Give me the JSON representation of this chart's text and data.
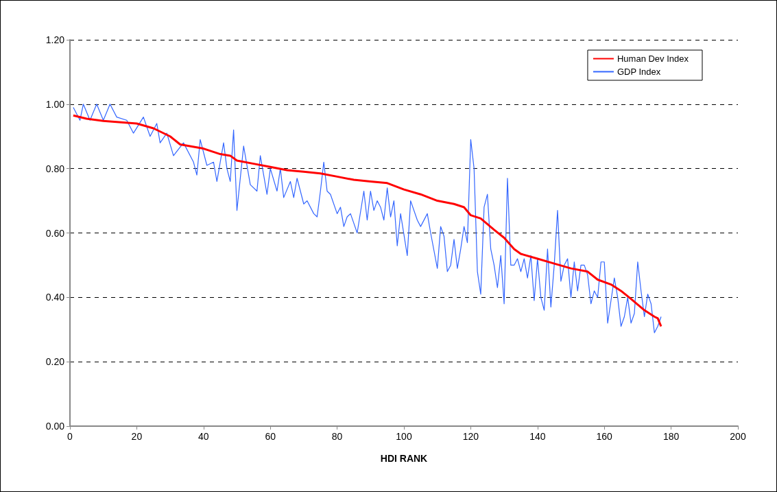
{
  "chart_data": {
    "type": "line",
    "xlabel": "HDI RANK",
    "xlim": [
      0,
      200
    ],
    "xticks": [
      0,
      20,
      40,
      60,
      80,
      100,
      120,
      140,
      160,
      180,
      200
    ],
    "ylim": [
      0,
      1.2
    ],
    "yticks": [
      {
        "value": 0,
        "label": "0.00"
      },
      {
        "value": 0.2,
        "label": "0.20"
      },
      {
        "value": 0.4,
        "label": "0.40"
      },
      {
        "value": 0.6,
        "label": "0.60"
      },
      {
        "value": 0.8,
        "label": "0.80"
      },
      {
        "value": 1,
        "label": "1.00"
      },
      {
        "value": 1.2,
        "label": "1.20"
      }
    ],
    "grid": "y",
    "legend": "top right",
    "series": [
      {
        "name": "Human Dev Index",
        "color": "#ff0000",
        "x": [
          1,
          5,
          10,
          20,
          25,
          30,
          33,
          40,
          45,
          48,
          50,
          55,
          60,
          65,
          70,
          75,
          80,
          85,
          90,
          95,
          100,
          105,
          110,
          115,
          118,
          120,
          123,
          127,
          130,
          133,
          135,
          140,
          145,
          150,
          155,
          158,
          162,
          165,
          168,
          172,
          175,
          176,
          177
        ],
        "values": [
          0.965,
          0.955,
          0.948,
          0.94,
          0.925,
          0.9,
          0.875,
          0.862,
          0.845,
          0.84,
          0.825,
          0.815,
          0.805,
          0.795,
          0.79,
          0.785,
          0.775,
          0.765,
          0.76,
          0.755,
          0.735,
          0.72,
          0.7,
          0.69,
          0.68,
          0.655,
          0.645,
          0.61,
          0.585,
          0.55,
          0.535,
          0.52,
          0.505,
          0.49,
          0.48,
          0.455,
          0.44,
          0.42,
          0.395,
          0.36,
          0.34,
          0.335,
          0.31
        ]
      },
      {
        "name": "GDP Index",
        "color": "#3366ff",
        "x": [
          1,
          3,
          4,
          6,
          8,
          10,
          12,
          14,
          17,
          19,
          22,
          24,
          26,
          27,
          29,
          31,
          34,
          37,
          38,
          39,
          41,
          43,
          44,
          46,
          47,
          48,
          49,
          50,
          52,
          54,
          56,
          57,
          59,
          60,
          62,
          63,
          64,
          66,
          67,
          68,
          70,
          71,
          73,
          74,
          75,
          76,
          77,
          78,
          80,
          81,
          82,
          83,
          84,
          85,
          86,
          88,
          89,
          90,
          91,
          92,
          93,
          94,
          95,
          96,
          97,
          98,
          99,
          101,
          102,
          104,
          105,
          107,
          108,
          110,
          111,
          112,
          113,
          114,
          115,
          116,
          117,
          118,
          119,
          120,
          121,
          122,
          123,
          124,
          125,
          126,
          127,
          128,
          129,
          130,
          131,
          132,
          133,
          134,
          135,
          136,
          137,
          138,
          139,
          140,
          141,
          142,
          143,
          144,
          145,
          146,
          147,
          148,
          149,
          150,
          151,
          152,
          153,
          154,
          155,
          156,
          157,
          158,
          159,
          160,
          161,
          162,
          163,
          164,
          165,
          166,
          167,
          168,
          169,
          170,
          171,
          172,
          173,
          174,
          175,
          176,
          177
        ],
        "values": [
          0.99,
          0.95,
          1.0,
          0.95,
          1.0,
          0.95,
          1.0,
          0.96,
          0.95,
          0.91,
          0.96,
          0.9,
          0.94,
          0.88,
          0.91,
          0.84,
          0.88,
          0.82,
          0.78,
          0.89,
          0.81,
          0.82,
          0.76,
          0.88,
          0.8,
          0.76,
          0.92,
          0.67,
          0.87,
          0.75,
          0.73,
          0.84,
          0.72,
          0.8,
          0.73,
          0.8,
          0.71,
          0.76,
          0.71,
          0.77,
          0.69,
          0.7,
          0.66,
          0.65,
          0.73,
          0.82,
          0.73,
          0.72,
          0.66,
          0.68,
          0.62,
          0.65,
          0.66,
          0.63,
          0.6,
          0.73,
          0.64,
          0.73,
          0.67,
          0.7,
          0.68,
          0.64,
          0.74,
          0.65,
          0.7,
          0.56,
          0.66,
          0.53,
          0.7,
          0.64,
          0.62,
          0.66,
          0.6,
          0.49,
          0.62,
          0.59,
          0.48,
          0.5,
          0.58,
          0.49,
          0.55,
          0.62,
          0.57,
          0.89,
          0.8,
          0.48,
          0.41,
          0.68,
          0.72,
          0.55,
          0.5,
          0.43,
          0.53,
          0.38,
          0.77,
          0.5,
          0.5,
          0.52,
          0.48,
          0.52,
          0.46,
          0.53,
          0.39,
          0.52,
          0.4,
          0.36,
          0.55,
          0.37,
          0.5,
          0.67,
          0.45,
          0.5,
          0.52,
          0.4,
          0.51,
          0.42,
          0.5,
          0.5,
          0.47,
          0.38,
          0.42,
          0.4,
          0.51,
          0.51,
          0.32,
          0.39,
          0.46,
          0.4,
          0.31,
          0.34,
          0.4,
          0.32,
          0.35,
          0.51,
          0.42,
          0.34,
          0.41,
          0.38,
          0.29,
          0.31,
          0.34
        ]
      }
    ]
  }
}
